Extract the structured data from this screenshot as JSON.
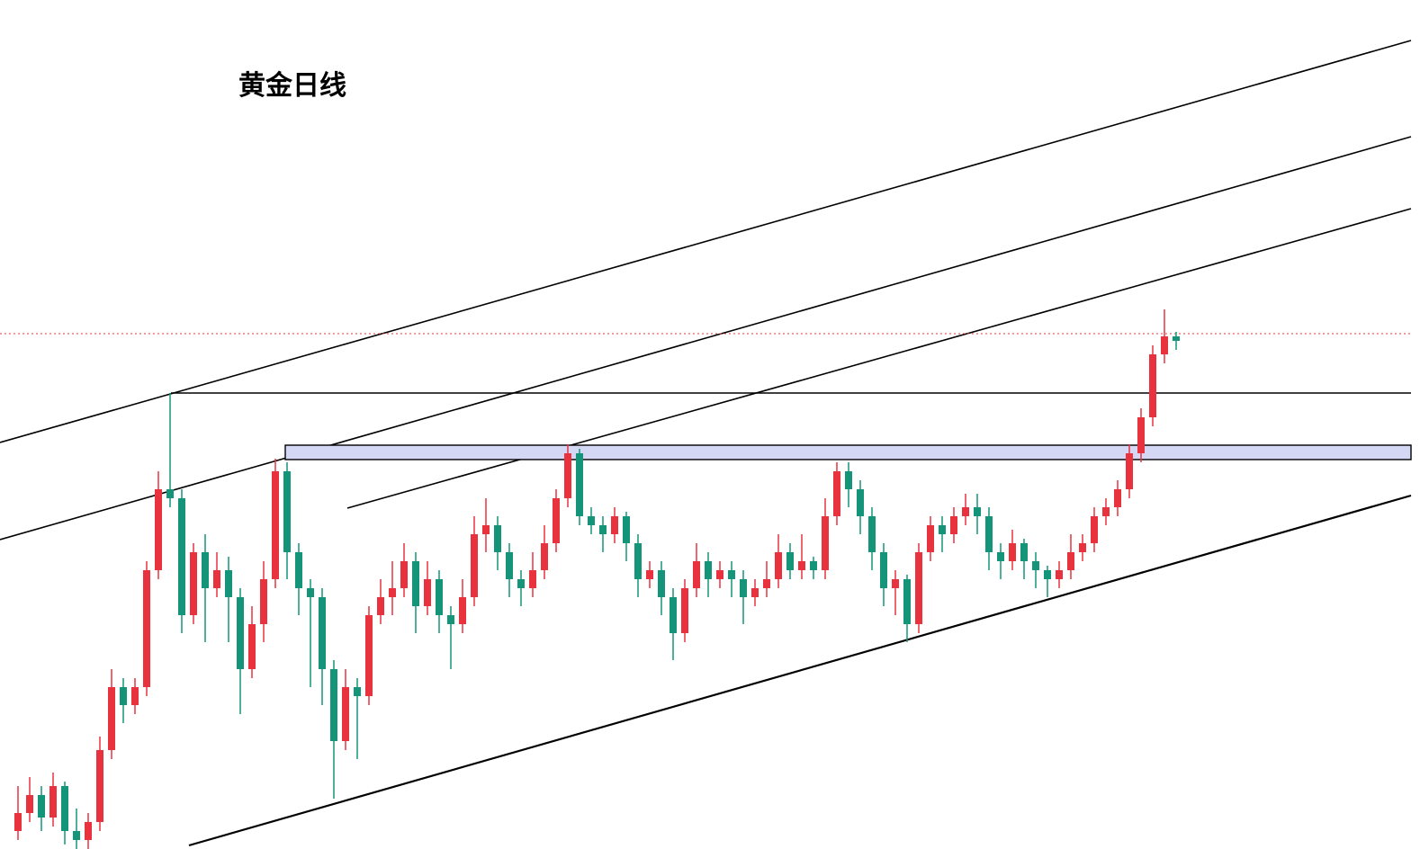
{
  "chart_data": {
    "type": "candlestick",
    "title": "黄金日线",
    "ylim": [
      0,
      944
    ],
    "up_color": "#e8333f",
    "down_color": "#14957a",
    "ohlc": [
      [
        20,
        70,
        10,
        40
      ],
      [
        40,
        80,
        30,
        60
      ],
      [
        60,
        70,
        20,
        35
      ],
      [
        35,
        85,
        25,
        70
      ],
      [
        70,
        75,
        5,
        20
      ],
      [
        20,
        45,
        0,
        10
      ],
      [
        10,
        40,
        0,
        30
      ],
      [
        30,
        125,
        20,
        110
      ],
      [
        110,
        200,
        100,
        180
      ],
      [
        180,
        190,
        140,
        160
      ],
      [
        160,
        190,
        150,
        180
      ],
      [
        180,
        320,
        170,
        310
      ],
      [
        310,
        420,
        300,
        400
      ],
      [
        400,
        507,
        380,
        390
      ],
      [
        390,
        400,
        240,
        260
      ],
      [
        260,
        340,
        250,
        330
      ],
      [
        330,
        350,
        230,
        290
      ],
      [
        290,
        330,
        280,
        310
      ],
      [
        310,
        325,
        230,
        280
      ],
      [
        280,
        290,
        150,
        200
      ],
      [
        200,
        270,
        190,
        250
      ],
      [
        250,
        320,
        230,
        300
      ],
      [
        300,
        434,
        290,
        420
      ],
      [
        420,
        430,
        300,
        330
      ],
      [
        330,
        340,
        260,
        290
      ],
      [
        290,
        300,
        180,
        280
      ],
      [
        280,
        290,
        160,
        200
      ],
      [
        200,
        210,
        56,
        120
      ],
      [
        120,
        200,
        110,
        180
      ],
      [
        180,
        190,
        100,
        170
      ],
      [
        170,
        270,
        160,
        260
      ],
      [
        260,
        300,
        250,
        280
      ],
      [
        280,
        320,
        260,
        290
      ],
      [
        290,
        340,
        280,
        320
      ],
      [
        320,
        330,
        240,
        270
      ],
      [
        270,
        320,
        260,
        300
      ],
      [
        300,
        310,
        240,
        260
      ],
      [
        260,
        270,
        200,
        250
      ],
      [
        250,
        300,
        240,
        280
      ],
      [
        280,
        370,
        270,
        350
      ],
      [
        350,
        390,
        330,
        360
      ],
      [
        360,
        370,
        310,
        330
      ],
      [
        330,
        340,
        280,
        300
      ],
      [
        300,
        310,
        270,
        290
      ],
      [
        290,
        330,
        280,
        310
      ],
      [
        310,
        360,
        300,
        340
      ],
      [
        340,
        400,
        330,
        390
      ],
      [
        390,
        450,
        380,
        440
      ],
      [
        440,
        445,
        360,
        370
      ],
      [
        370,
        380,
        350,
        360
      ],
      [
        360,
        370,
        330,
        350
      ],
      [
        350,
        380,
        340,
        370
      ],
      [
        370,
        375,
        320,
        340
      ],
      [
        340,
        350,
        280,
        300
      ],
      [
        300,
        320,
        290,
        310
      ],
      [
        310,
        320,
        260,
        280
      ],
      [
        280,
        290,
        210,
        240
      ],
      [
        240,
        300,
        230,
        290
      ],
      [
        290,
        340,
        280,
        320
      ],
      [
        320,
        330,
        280,
        300
      ],
      [
        300,
        320,
        290,
        310
      ],
      [
        310,
        320,
        280,
        300
      ],
      [
        300,
        310,
        250,
        280
      ],
      [
        280,
        300,
        270,
        290
      ],
      [
        290,
        320,
        280,
        300
      ],
      [
        300,
        350,
        290,
        330
      ],
      [
        330,
        340,
        300,
        310
      ],
      [
        310,
        350,
        300,
        320
      ],
      [
        320,
        325,
        300,
        310
      ],
      [
        310,
        390,
        300,
        370
      ],
      [
        370,
        430,
        360,
        420
      ],
      [
        420,
        430,
        380,
        400
      ],
      [
        400,
        410,
        350,
        370
      ],
      [
        370,
        380,
        310,
        330
      ],
      [
        330,
        340,
        270,
        290
      ],
      [
        290,
        310,
        260,
        300
      ],
      [
        300,
        305,
        230,
        250
      ],
      [
        250,
        340,
        240,
        330
      ],
      [
        330,
        370,
        320,
        360
      ],
      [
        360,
        370,
        330,
        350
      ],
      [
        350,
        380,
        340,
        370
      ],
      [
        370,
        395,
        360,
        380
      ],
      [
        380,
        395,
        350,
        370
      ],
      [
        370,
        380,
        310,
        330
      ],
      [
        330,
        340,
        300,
        320
      ],
      [
        320,
        355,
        310,
        340
      ],
      [
        340,
        345,
        300,
        320
      ],
      [
        320,
        330,
        290,
        310
      ],
      [
        310,
        315,
        280,
        300
      ],
      [
        300,
        320,
        290,
        310
      ],
      [
        310,
        350,
        300,
        330
      ],
      [
        330,
        350,
        320,
        340
      ],
      [
        340,
        380,
        330,
        370
      ],
      [
        370,
        390,
        360,
        380
      ],
      [
        380,
        410,
        370,
        400
      ],
      [
        400,
        450,
        390,
        440
      ],
      [
        440,
        490,
        430,
        480
      ],
      [
        480,
        560,
        470,
        550
      ],
      [
        550,
        600,
        540,
        570
      ],
      [
        570,
        575,
        555,
        565
      ]
    ]
  }
}
